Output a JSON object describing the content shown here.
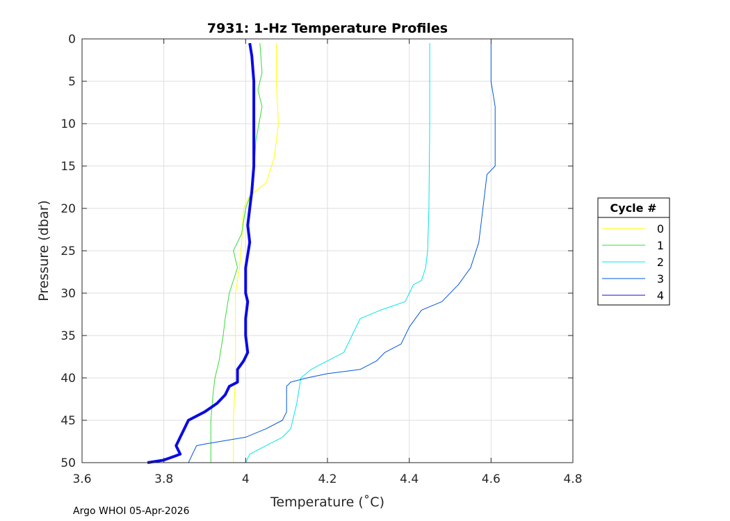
{
  "chart_data": {
    "type": "line",
    "title": "7931: 1-Hz Temperature Profiles",
    "xlabel": "Temperature (˚C)",
    "ylabel": "Pressure (dbar)",
    "xlim": [
      3.6,
      4.8
    ],
    "ylim": [
      0,
      50
    ],
    "y_reversed": true,
    "grid": true,
    "xticks": [
      3.6,
      3.8,
      4.0,
      4.2,
      4.4,
      4.6,
      4.8
    ],
    "xtick_labels": [
      "3.6",
      "3.8",
      "4",
      "4.2",
      "4.4",
      "4.6",
      "4.8"
    ],
    "yticks": [
      0,
      5,
      10,
      15,
      20,
      25,
      30,
      35,
      40,
      45,
      50
    ],
    "ytick_labels": [
      "0",
      "5",
      "10",
      "15",
      "20",
      "25",
      "30",
      "35",
      "40",
      "45",
      "50"
    ],
    "legend": {
      "title": "Cycle #",
      "placement": "outside-right"
    },
    "series": [
      {
        "name": "0",
        "color": "#ffff00",
        "width": 1,
        "points": [
          [
            4.075,
            0.5
          ],
          [
            4.075,
            5
          ],
          [
            4.08,
            10
          ],
          [
            4.07,
            14
          ],
          [
            4.05,
            17
          ],
          [
            4.01,
            18.5
          ],
          [
            3.995,
            20
          ],
          [
            3.99,
            24
          ],
          [
            3.985,
            27
          ],
          [
            3.975,
            30
          ],
          [
            3.975,
            35
          ],
          [
            3.975,
            40
          ],
          [
            3.97,
            45
          ],
          [
            3.97,
            50
          ]
        ]
      },
      {
        "name": "1",
        "color": "#33dd33",
        "width": 1,
        "points": [
          [
            4.035,
            0.5
          ],
          [
            4.04,
            4
          ],
          [
            4.03,
            6
          ],
          [
            4.04,
            8
          ],
          [
            4.025,
            12
          ],
          [
            4.02,
            16
          ],
          [
            4.015,
            18
          ],
          [
            4.0,
            20
          ],
          [
            3.99,
            23
          ],
          [
            3.97,
            25
          ],
          [
            3.98,
            27
          ],
          [
            3.96,
            30
          ],
          [
            3.95,
            33
          ],
          [
            3.945,
            35
          ],
          [
            3.935,
            38
          ],
          [
            3.925,
            40
          ],
          [
            3.92,
            42
          ],
          [
            3.915,
            45
          ],
          [
            3.915,
            50
          ]
        ]
      },
      {
        "name": "2",
        "color": "#00e5e5",
        "width": 1,
        "points": [
          [
            4.45,
            0.5
          ],
          [
            4.45,
            10
          ],
          [
            4.448,
            20
          ],
          [
            4.445,
            25
          ],
          [
            4.44,
            27
          ],
          [
            4.43,
            28.5
          ],
          [
            4.41,
            29
          ],
          [
            4.39,
            31
          ],
          [
            4.33,
            32
          ],
          [
            4.28,
            33
          ],
          [
            4.26,
            35
          ],
          [
            4.24,
            37
          ],
          [
            4.2,
            38
          ],
          [
            4.16,
            39
          ],
          [
            4.135,
            40
          ],
          [
            4.125,
            43
          ],
          [
            4.11,
            46
          ],
          [
            4.09,
            47
          ],
          [
            4.05,
            48
          ],
          [
            4.01,
            49
          ],
          [
            4.0,
            50
          ]
        ]
      },
      {
        "name": "3",
        "color": "#0055dd",
        "width": 1,
        "points": [
          [
            4.6,
            0.5
          ],
          [
            4.6,
            5
          ],
          [
            4.61,
            8
          ],
          [
            4.61,
            15
          ],
          [
            4.59,
            16
          ],
          [
            4.58,
            20
          ],
          [
            4.57,
            24
          ],
          [
            4.55,
            27
          ],
          [
            4.52,
            29
          ],
          [
            4.48,
            31
          ],
          [
            4.43,
            32
          ],
          [
            4.4,
            34
          ],
          [
            4.38,
            36
          ],
          [
            4.34,
            37
          ],
          [
            4.32,
            38
          ],
          [
            4.28,
            39
          ],
          [
            4.2,
            39.5
          ],
          [
            4.15,
            40
          ],
          [
            4.11,
            40.5
          ],
          [
            4.1,
            41
          ],
          [
            4.1,
            44
          ],
          [
            4.09,
            45
          ],
          [
            4.05,
            46
          ],
          [
            4.0,
            47
          ],
          [
            3.9,
            47.8
          ],
          [
            3.88,
            48
          ],
          [
            3.86,
            50
          ]
        ]
      },
      {
        "name": "4",
        "color": "#0a0ae6",
        "width": 4,
        "points": [
          [
            4.01,
            0.5
          ],
          [
            4.015,
            2
          ],
          [
            4.02,
            5
          ],
          [
            4.02,
            10
          ],
          [
            4.02,
            15
          ],
          [
            4.015,
            18
          ],
          [
            4.01,
            20
          ],
          [
            4.005,
            22
          ],
          [
            4.01,
            24
          ],
          [
            4.0,
            27
          ],
          [
            4.0,
            30
          ],
          [
            4.005,
            31
          ],
          [
            4.0,
            33
          ],
          [
            4.0,
            35
          ],
          [
            4.005,
            37
          ],
          [
            3.995,
            38
          ],
          [
            3.98,
            39
          ],
          [
            3.98,
            40.5
          ],
          [
            3.96,
            41
          ],
          [
            3.95,
            42
          ],
          [
            3.93,
            43
          ],
          [
            3.9,
            44
          ],
          [
            3.86,
            45
          ],
          [
            3.85,
            46
          ],
          [
            3.84,
            47
          ],
          [
            3.83,
            48
          ],
          [
            3.84,
            49
          ],
          [
            3.8,
            49.7
          ],
          [
            3.76,
            50
          ]
        ]
      }
    ]
  },
  "footer": "Argo WHOI 05-Apr-2026"
}
